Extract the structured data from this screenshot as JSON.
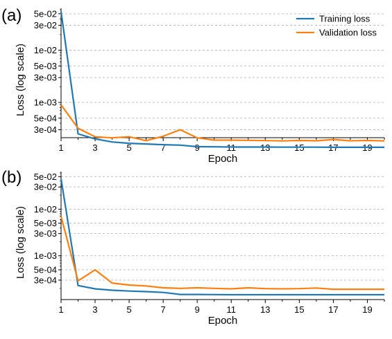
{
  "chart_data": [
    {
      "type": "line",
      "panel_label": "(a)",
      "xlabel": "Epoch",
      "ylabel": "Loss (log scale)",
      "x": [
        1,
        2,
        3,
        4,
        5,
        6,
        7,
        8,
        9,
        10,
        11,
        12,
        13,
        14,
        15,
        16,
        17,
        18,
        19,
        20
      ],
      "xticks": [
        1,
        3,
        5,
        7,
        9,
        11,
        13,
        15,
        17,
        19
      ],
      "xlim": [
        1,
        20
      ],
      "yscale": "log",
      "ylim": [
        0.00011,
        0.07
      ],
      "yticks": [
        {
          "value": 0.05,
          "label": "5e-02"
        },
        {
          "value": 0.03,
          "label": "3e-02"
        },
        {
          "value": 0.01,
          "label": "1e-02"
        },
        {
          "value": 0.005,
          "label": "5e-03"
        },
        {
          "value": 0.003,
          "label": "3e-03"
        },
        {
          "value": 0.001,
          "label": "1e-03"
        },
        {
          "value": 0.0005,
          "label": "5e-04"
        },
        {
          "value": 0.0003,
          "label": "3e-04"
        }
      ],
      "grid": "y-dashed",
      "legend_position": "top-right",
      "series": [
        {
          "name": "Training loss",
          "color": "#1f77b4",
          "values": [
            0.055,
            0.00025,
            0.0002,
            0.000175,
            0.000165,
            0.00016,
            0.000155,
            0.000152,
            0.000142,
            0.000141,
            0.00014,
            0.00014,
            0.00014,
            0.000139,
            0.000139,
            0.000139,
            0.000138,
            0.000138,
            0.000138,
            0.000138
          ]
        },
        {
          "name": "Validation loss",
          "color": "#ff7f0e",
          "values": [
            0.0009,
            0.00032,
            0.00022,
            0.00021,
            0.00022,
            0.000185,
            0.000225,
            0.0003,
            0.00021,
            0.00019,
            0.00019,
            0.000188,
            0.000186,
            0.000183,
            0.000187,
            0.000184,
            0.000195,
            0.000184,
            0.000187,
            0.000183
          ]
        }
      ]
    },
    {
      "type": "line",
      "panel_label": "(b)",
      "xlabel": "Epoch",
      "ylabel": "Loss (log scale)",
      "x": [
        1,
        2,
        3,
        4,
        5,
        6,
        7,
        8,
        9,
        10,
        11,
        12,
        13,
        14,
        15,
        16,
        17,
        18,
        19,
        20
      ],
      "xticks": [
        1,
        3,
        5,
        7,
        9,
        11,
        13,
        15,
        17,
        19
      ],
      "xlim": [
        1,
        20
      ],
      "yscale": "log",
      "ylim": [
        0.00011,
        0.07
      ],
      "yticks": [
        {
          "value": 0.05,
          "label": "5e-02"
        },
        {
          "value": 0.03,
          "label": "3e-02"
        },
        {
          "value": 0.01,
          "label": "1e-02"
        },
        {
          "value": 0.005,
          "label": "5e-03"
        },
        {
          "value": 0.003,
          "label": "3e-03"
        },
        {
          "value": 0.001,
          "label": "1e-03"
        },
        {
          "value": 0.0005,
          "label": "5e-04"
        },
        {
          "value": 0.0003,
          "label": "3e-04"
        }
      ],
      "grid": "y-dashed",
      "series": [
        {
          "name": "Training loss",
          "color": "#1f77b4",
          "values": [
            0.045,
            0.00023,
            0.000195,
            0.000182,
            0.000175,
            0.00017,
            0.000163,
            0.000148,
            0.000148,
            0.000147,
            0.000146,
            0.000146,
            0.000146,
            0.000146,
            0.000146,
            0.000146,
            0.000146,
            0.000146,
            0.000146,
            0.000146
          ]
        },
        {
          "name": "Validation loss",
          "color": "#ff7f0e",
          "values": [
            0.007,
            0.00029,
            0.0005,
            0.00026,
            0.000235,
            0.000225,
            0.000205,
            0.0002,
            0.000205,
            0.0002,
            0.000195,
            0.000205,
            0.000197,
            0.000195,
            0.000197,
            0.000203,
            0.000191,
            0.000191,
            0.000191,
            0.000191
          ]
        }
      ]
    }
  ]
}
